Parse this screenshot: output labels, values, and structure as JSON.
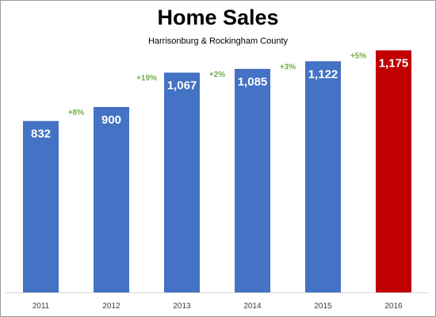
{
  "chart_data": {
    "type": "bar",
    "title": "Home Sales",
    "subtitle": "Harrisonburg & Rockingham County",
    "categories": [
      "2011",
      "2012",
      "2013",
      "2014",
      "2015",
      "2016"
    ],
    "values": [
      832,
      900,
      1067,
      1085,
      1122,
      1175
    ],
    "value_labels": [
      "832",
      "900",
      "1,067",
      "1,085",
      "1,122",
      "1,175"
    ],
    "change_labels": [
      "+8%",
      "+19%",
      "+2%",
      "+3%",
      "+5%"
    ],
    "bar_colors": [
      "#4472c4",
      "#4472c4",
      "#4472c4",
      "#4472c4",
      "#4472c4",
      "#c00000"
    ],
    "change_color": "#70ad47",
    "ylim": [
      0,
      1400
    ],
    "xlabel": "",
    "ylabel": "",
    "grid": false,
    "legend": "none"
  }
}
